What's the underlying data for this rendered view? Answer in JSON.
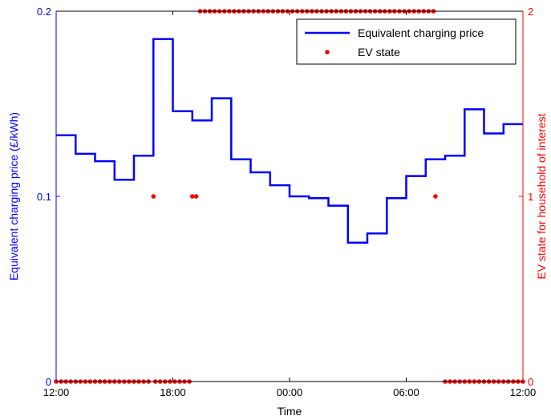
{
  "chart_data": {
    "type": "line",
    "xlabel": "Time",
    "ylabel_left": "Equivalent charging price (£/kWh)",
    "ylabel_right": "EV state for household of interest",
    "x_ticks": [
      "12:00",
      "18:00",
      "00:00",
      "06:00",
      "12:00"
    ],
    "x_tick_hours": [
      0,
      6,
      12,
      18,
      24
    ],
    "xlim_hours": [
      0,
      24
    ],
    "ylim_left": [
      0,
      0.2
    ],
    "y_ticks_left": [
      "0",
      "0.1",
      "0.2"
    ],
    "ylim_right": [
      0,
      2
    ],
    "y_ticks_right": [
      "0",
      "1",
      "2"
    ],
    "legend_position": "top-right",
    "colors": {
      "price": "#0000ff",
      "ev": "#ff0000",
      "left_axis": "#0000ff",
      "right_axis": "#ff0000"
    },
    "series": [
      {
        "name": "Equivalent charging price",
        "kind": "step-line",
        "x_hours": [
          0,
          1,
          2,
          3,
          4,
          5,
          6,
          7,
          8,
          9,
          10,
          11,
          12,
          13,
          14,
          15,
          16,
          17,
          18,
          19,
          20,
          21,
          22,
          23,
          24
        ],
        "values": [
          0.133,
          0.123,
          0.119,
          0.109,
          0.122,
          0.185,
          0.146,
          0.141,
          0.153,
          0.12,
          0.113,
          0.106,
          0.1,
          0.099,
          0.095,
          0.075,
          0.08,
          0.099,
          0.111,
          0.12,
          0.122,
          0.147,
          0.134,
          0.139,
          0.139
        ]
      },
      {
        "name": "EV state",
        "kind": "scatter",
        "groups": [
          {
            "from": 0.0,
            "to": 4.8,
            "value": 0,
            "step": 0.25
          },
          {
            "from": 5.1,
            "to": 6.9,
            "value": 0,
            "step": 0.25
          },
          {
            "from": 7.4,
            "to": 19.4,
            "value": 2,
            "step": 0.25
          },
          {
            "from": 20.0,
            "to": 24.0,
            "value": 0,
            "step": 0.25
          }
        ],
        "points": [
          {
            "x": 5.0,
            "y": 1
          },
          {
            "x": 7.0,
            "y": 1
          },
          {
            "x": 7.2,
            "y": 1
          },
          {
            "x": 19.5,
            "y": 1
          }
        ]
      }
    ]
  }
}
